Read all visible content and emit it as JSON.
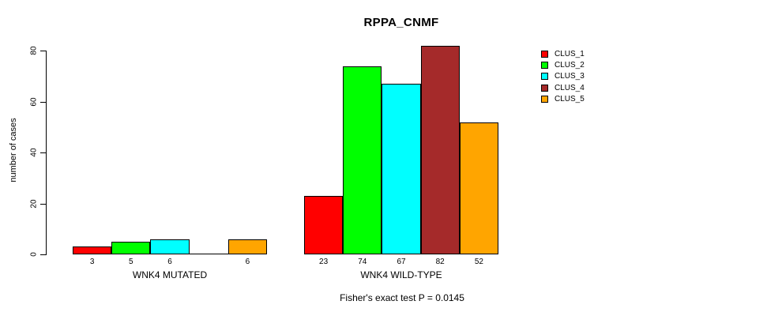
{
  "chart_data": {
    "type": "bar",
    "title": "RPPA_CNMF",
    "ylabel": "number of cases",
    "xlabel": "",
    "subtitle": "Fisher's exact test P = 0.0145",
    "ylim": [
      0,
      80
    ],
    "yticks": [
      "0",
      "20",
      "40",
      "60",
      "80"
    ],
    "grid": false,
    "legend_position": "right-inside",
    "categories": [
      "WNK4 MUTATED",
      "WNK4 WILD-TYPE"
    ],
    "series": [
      {
        "name": "CLUS_1",
        "color": "#FF0000",
        "values": [
          3,
          23
        ]
      },
      {
        "name": "CLUS_2",
        "color": "#00FF00",
        "values": [
          5,
          74
        ]
      },
      {
        "name": "CLUS_3",
        "color": "#00FFFF",
        "values": [
          6,
          67
        ]
      },
      {
        "name": "CLUS_4",
        "color": "#A52A2A",
        "values": [
          0,
          82
        ]
      },
      {
        "name": "CLUS_5",
        "color": "#FFA500",
        "values": [
          6,
          52
        ]
      }
    ],
    "bar_value_labels": {
      "WNK4 MUTATED": [
        "3",
        "5",
        "6",
        "",
        "6"
      ],
      "WNK4 WILD-TYPE": [
        "23",
        "74",
        "67",
        "82",
        "52"
      ]
    },
    "axis_color": "#000000",
    "bar_border_color": "#000000",
    "background_color": "#FFFFFF"
  }
}
